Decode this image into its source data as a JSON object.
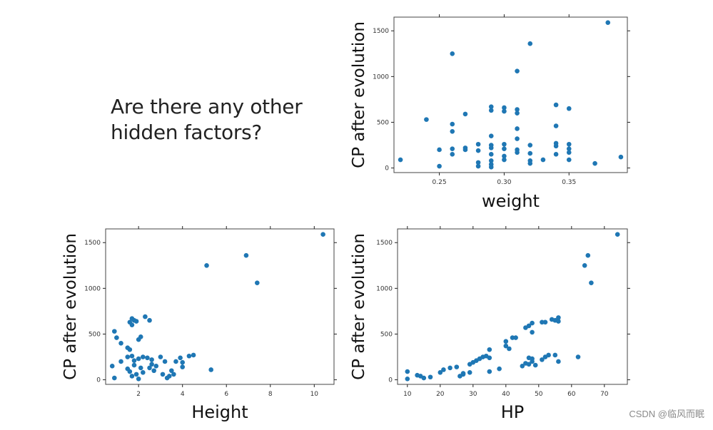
{
  "question": {
    "line1": "Are there any other",
    "line2": "hidden factors?"
  },
  "watermark": "CSDN @临风而眠",
  "colors": {
    "point": "#1f77b4",
    "axis": "#222222",
    "frame": "#444444"
  },
  "chart_data": [
    {
      "id": "weight",
      "type": "scatter",
      "xlabel": "weight",
      "ylabel": "CP after evolution",
      "xlim": [
        0.215,
        0.395
      ],
      "ylim": [
        -50,
        1650
      ],
      "xticks": [
        0.25,
        0.3,
        0.35
      ],
      "xticklabels": [
        "0.25",
        "0.30",
        "0.35"
      ],
      "yticks": [
        0,
        500,
        1000,
        1500
      ],
      "yticklabels": [
        "0",
        "500",
        "1000",
        "1500"
      ],
      "points": [
        [
          0.22,
          90
        ],
        [
          0.24,
          530
        ],
        [
          0.25,
          200
        ],
        [
          0.25,
          20
        ],
        [
          0.26,
          1250
        ],
        [
          0.26,
          480
        ],
        [
          0.26,
          400
        ],
        [
          0.26,
          210
        ],
        [
          0.26,
          150
        ],
        [
          0.27,
          590
        ],
        [
          0.27,
          220
        ],
        [
          0.27,
          200
        ],
        [
          0.28,
          260
        ],
        [
          0.28,
          190
        ],
        [
          0.28,
          60
        ],
        [
          0.28,
          20
        ],
        [
          0.29,
          670
        ],
        [
          0.29,
          630
        ],
        [
          0.29,
          350
        ],
        [
          0.29,
          250
        ],
        [
          0.29,
          220
        ],
        [
          0.29,
          150
        ],
        [
          0.29,
          80
        ],
        [
          0.29,
          40
        ],
        [
          0.29,
          10
        ],
        [
          0.3,
          660
        ],
        [
          0.3,
          620
        ],
        [
          0.3,
          260
        ],
        [
          0.3,
          210
        ],
        [
          0.3,
          130
        ],
        [
          0.3,
          90
        ],
        [
          0.31,
          1060
        ],
        [
          0.31,
          640
        ],
        [
          0.31,
          600
        ],
        [
          0.31,
          430
        ],
        [
          0.31,
          320
        ],
        [
          0.31,
          200
        ],
        [
          0.31,
          170
        ],
        [
          0.32,
          1360
        ],
        [
          0.32,
          250
        ],
        [
          0.32,
          160
        ],
        [
          0.32,
          80
        ],
        [
          0.32,
          50
        ],
        [
          0.33,
          90
        ],
        [
          0.34,
          690
        ],
        [
          0.34,
          460
        ],
        [
          0.34,
          270
        ],
        [
          0.34,
          240
        ],
        [
          0.34,
          150
        ],
        [
          0.35,
          650
        ],
        [
          0.35,
          260
        ],
        [
          0.35,
          210
        ],
        [
          0.35,
          170
        ],
        [
          0.35,
          90
        ],
        [
          0.37,
          50
        ],
        [
          0.38,
          1590
        ],
        [
          0.39,
          120
        ]
      ]
    },
    {
      "id": "height",
      "type": "scatter",
      "xlabel": "Height",
      "ylabel": "CP after evolution",
      "xlim": [
        0.5,
        10.9
      ],
      "ylim": [
        -50,
        1650
      ],
      "xticks": [
        2,
        4,
        6,
        8,
        10
      ],
      "xticklabels": [
        "2",
        "4",
        "6",
        "8",
        "10"
      ],
      "yticks": [
        0,
        500,
        1000,
        1500
      ],
      "yticklabels": [
        "0",
        "500",
        "1000",
        "1500"
      ],
      "points": [
        [
          0.8,
          150
        ],
        [
          0.9,
          530
        ],
        [
          0.9,
          20
        ],
        [
          1.0,
          460
        ],
        [
          1.2,
          400
        ],
        [
          1.2,
          200
        ],
        [
          1.5,
          350
        ],
        [
          1.5,
          250
        ],
        [
          1.5,
          120
        ],
        [
          1.6,
          630
        ],
        [
          1.6,
          330
        ],
        [
          1.6,
          90
        ],
        [
          1.7,
          670
        ],
        [
          1.7,
          600
        ],
        [
          1.7,
          260
        ],
        [
          1.7,
          40
        ],
        [
          1.8,
          650
        ],
        [
          1.8,
          210
        ],
        [
          1.8,
          160
        ],
        [
          1.9,
          640
        ],
        [
          1.9,
          60
        ],
        [
          2.0,
          440
        ],
        [
          2.0,
          230
        ],
        [
          2.0,
          10
        ],
        [
          2.1,
          470
        ],
        [
          2.1,
          130
        ],
        [
          2.2,
          250
        ],
        [
          2.2,
          80
        ],
        [
          2.3,
          690
        ],
        [
          2.4,
          240
        ],
        [
          2.5,
          650
        ],
        [
          2.5,
          130
        ],
        [
          2.6,
          220
        ],
        [
          2.6,
          170
        ],
        [
          2.7,
          100
        ],
        [
          2.8,
          150
        ],
        [
          3.0,
          250
        ],
        [
          3.1,
          60
        ],
        [
          3.2,
          200
        ],
        [
          3.3,
          20
        ],
        [
          3.4,
          40
        ],
        [
          3.5,
          100
        ],
        [
          3.6,
          60
        ],
        [
          3.7,
          200
        ],
        [
          3.9,
          240
        ],
        [
          4.0,
          190
        ],
        [
          4.0,
          140
        ],
        [
          4.3,
          260
        ],
        [
          4.5,
          270
        ],
        [
          5.1,
          1250
        ],
        [
          5.3,
          110
        ],
        [
          6.9,
          1360
        ],
        [
          7.4,
          1060
        ],
        [
          10.4,
          1590
        ]
      ]
    },
    {
      "id": "hp",
      "type": "scatter",
      "xlabel": "HP",
      "ylabel": "CP after evolution",
      "xlim": [
        7,
        77
      ],
      "ylim": [
        -50,
        1650
      ],
      "xticks": [
        10,
        20,
        30,
        40,
        50,
        60,
        70
      ],
      "xticklabels": [
        "10",
        "20",
        "30",
        "40",
        "50",
        "60",
        "70"
      ],
      "yticks": [
        0,
        500,
        1000,
        1500
      ],
      "yticklabels": [
        "0",
        "500",
        "1000",
        "1500"
      ],
      "points": [
        [
          10,
          90
        ],
        [
          10,
          10
        ],
        [
          13,
          50
        ],
        [
          14,
          40
        ],
        [
          15,
          20
        ],
        [
          17,
          30
        ],
        [
          20,
          80
        ],
        [
          21,
          110
        ],
        [
          23,
          130
        ],
        [
          25,
          140
        ],
        [
          26,
          40
        ],
        [
          27,
          70
        ],
        [
          27,
          60
        ],
        [
          29,
          170
        ],
        [
          29,
          80
        ],
        [
          30,
          190
        ],
        [
          31,
          210
        ],
        [
          32,
          230
        ],
        [
          33,
          250
        ],
        [
          34,
          260
        ],
        [
          35,
          330
        ],
        [
          35,
          240
        ],
        [
          35,
          90
        ],
        [
          38,
          120
        ],
        [
          40,
          420
        ],
        [
          40,
          370
        ],
        [
          41,
          340
        ],
        [
          42,
          460
        ],
        [
          43,
          460
        ],
        [
          45,
          150
        ],
        [
          46,
          570
        ],
        [
          46,
          180
        ],
        [
          47,
          590
        ],
        [
          47,
          240
        ],
        [
          47,
          170
        ],
        [
          48,
          620
        ],
        [
          48,
          520
        ],
        [
          48,
          230
        ],
        [
          48,
          200
        ],
        [
          49,
          160
        ],
        [
          51,
          630
        ],
        [
          51,
          220
        ],
        [
          52,
          630
        ],
        [
          52,
          250
        ],
        [
          53,
          270
        ],
        [
          54,
          660
        ],
        [
          55,
          650
        ],
        [
          55,
          270
        ],
        [
          56,
          680
        ],
        [
          56,
          640
        ],
        [
          56,
          200
        ],
        [
          62,
          250
        ],
        [
          64,
          1250
        ],
        [
          65,
          1360
        ],
        [
          66,
          1060
        ],
        [
          74,
          1590
        ]
      ]
    }
  ]
}
